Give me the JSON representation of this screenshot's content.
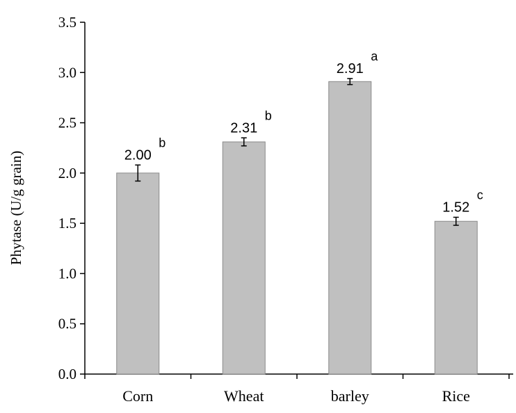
{
  "chart_data": {
    "type": "bar",
    "categories": [
      "Corn",
      "Wheat",
      "barley",
      "Rice"
    ],
    "values": [
      2.0,
      2.31,
      2.91,
      1.52
    ],
    "value_labels": [
      "2.00",
      "2.31",
      "2.91",
      "1.52"
    ],
    "errors": [
      0.08,
      0.04,
      0.03,
      0.04
    ],
    "significance": [
      "b",
      "b",
      "a",
      "c"
    ],
    "title": "",
    "xlabel": "",
    "ylabel": "Phytase (U/g grain)",
    "ylim": [
      0,
      3.5
    ],
    "yticks": [
      "0.0",
      "0.5",
      "1.0",
      "1.5",
      "2.0",
      "2.5",
      "3.0",
      "3.5"
    ],
    "grid": false,
    "legend": "none",
    "colors": {
      "bar_fill": "#c0c0c0",
      "bar_stroke": "#8a8a8a",
      "axis": "#000000"
    }
  }
}
